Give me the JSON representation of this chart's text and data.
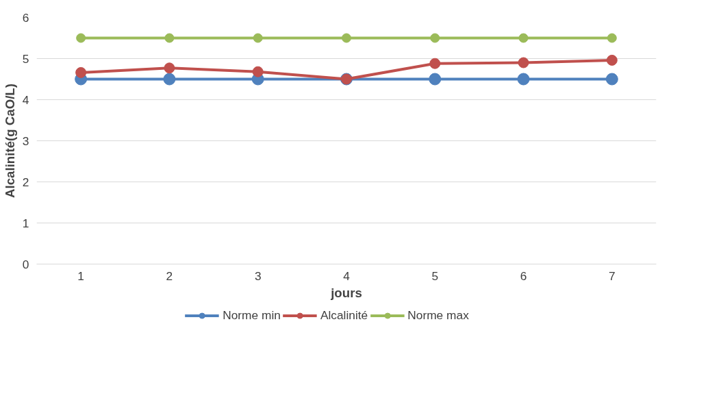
{
  "chart_data": {
    "type": "line",
    "xlabel": "jours",
    "ylabel": "Alcalinité(g CaO/L)",
    "categories": [
      "1",
      "2",
      "3",
      "4",
      "5",
      "6",
      "7"
    ],
    "series": [
      {
        "name": "Norme min",
        "color": "#4f81bd",
        "values": [
          4.5,
          4.5,
          4.5,
          4.5,
          4.5,
          4.5,
          4.5
        ]
      },
      {
        "name": "Alcalinité",
        "color": "#c0504d",
        "values": [
          4.66,
          4.77,
          4.68,
          4.5,
          4.88,
          4.9,
          4.96
        ]
      },
      {
        "name": "Norme max",
        "color": "#9bbb59",
        "values": [
          5.5,
          5.5,
          5.5,
          5.5,
          5.5,
          5.5,
          5.5
        ]
      }
    ],
    "ylim": [
      0,
      6
    ],
    "yticks": [
      0,
      1,
      2,
      3,
      4,
      5,
      6
    ],
    "grid": "y",
    "legend": "bottom",
    "marker": "circle",
    "line_style": "solid"
  }
}
